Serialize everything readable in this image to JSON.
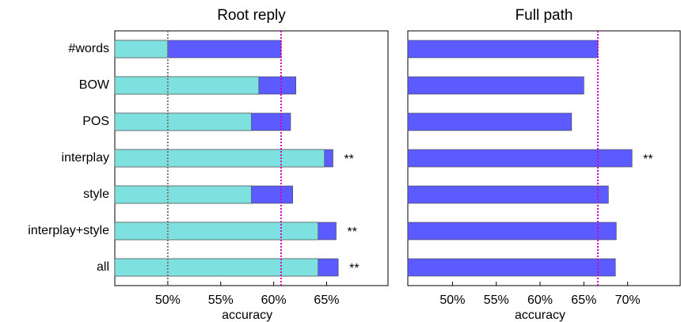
{
  "chart_data": [
    {
      "type": "bar",
      "title": "Root reply",
      "xlabel": "accuracy",
      "categories": [
        "#words",
        "BOW",
        "POS",
        "interplay",
        "style",
        "interplay+style",
        "all"
      ],
      "series": [
        {
          "color": "#5b5bff",
          "values": [
            60.7,
            62.1,
            61.6,
            65.6,
            61.8,
            65.9,
            66.1
          ]
        },
        {
          "color": "#7fe0e0",
          "values": [
            50,
            58.6,
            57.9,
            64.8,
            57.9,
            64.2,
            64.2
          ]
        }
      ],
      "xlim": [
        45,
        70.8
      ],
      "xticks": [
        {
          "value": 50,
          "label": "50%"
        },
        {
          "value": 55,
          "label": "55%"
        },
        {
          "value": 60,
          "label": "60%"
        },
        {
          "value": 65,
          "label": "65%"
        }
      ],
      "vlines": [
        {
          "value": 50,
          "color": "#777777"
        },
        {
          "value": 60.7,
          "color": "#cc00cc"
        }
      ],
      "annotations": [
        {
          "category": "interplay",
          "text": "**"
        },
        {
          "category": "interplay+style",
          "text": "**"
        },
        {
          "category": "all",
          "text": "**"
        }
      ]
    },
    {
      "type": "bar",
      "title": "Full path",
      "xlabel": "accuracy",
      "categories": [
        "#words",
        "BOW",
        "POS",
        "interplay",
        "style",
        "interplay+style",
        "all"
      ],
      "series": [
        {
          "color": "#5b5bff",
          "values": [
            66.6,
            65.0,
            63.6,
            70.5,
            67.8,
            68.7,
            68.6
          ]
        }
      ],
      "xlim": [
        44.9,
        76
      ],
      "xticks": [
        {
          "value": 50,
          "label": "50%"
        },
        {
          "value": 55,
          "label": "55%"
        },
        {
          "value": 60,
          "label": "60%"
        },
        {
          "value": 65,
          "label": "65%"
        },
        {
          "value": 70,
          "label": "70%"
        }
      ],
      "vlines": [
        {
          "value": 66.6,
          "color": "#cc00cc"
        }
      ],
      "annotations": [
        {
          "category": "interplay",
          "text": "**"
        }
      ]
    }
  ]
}
